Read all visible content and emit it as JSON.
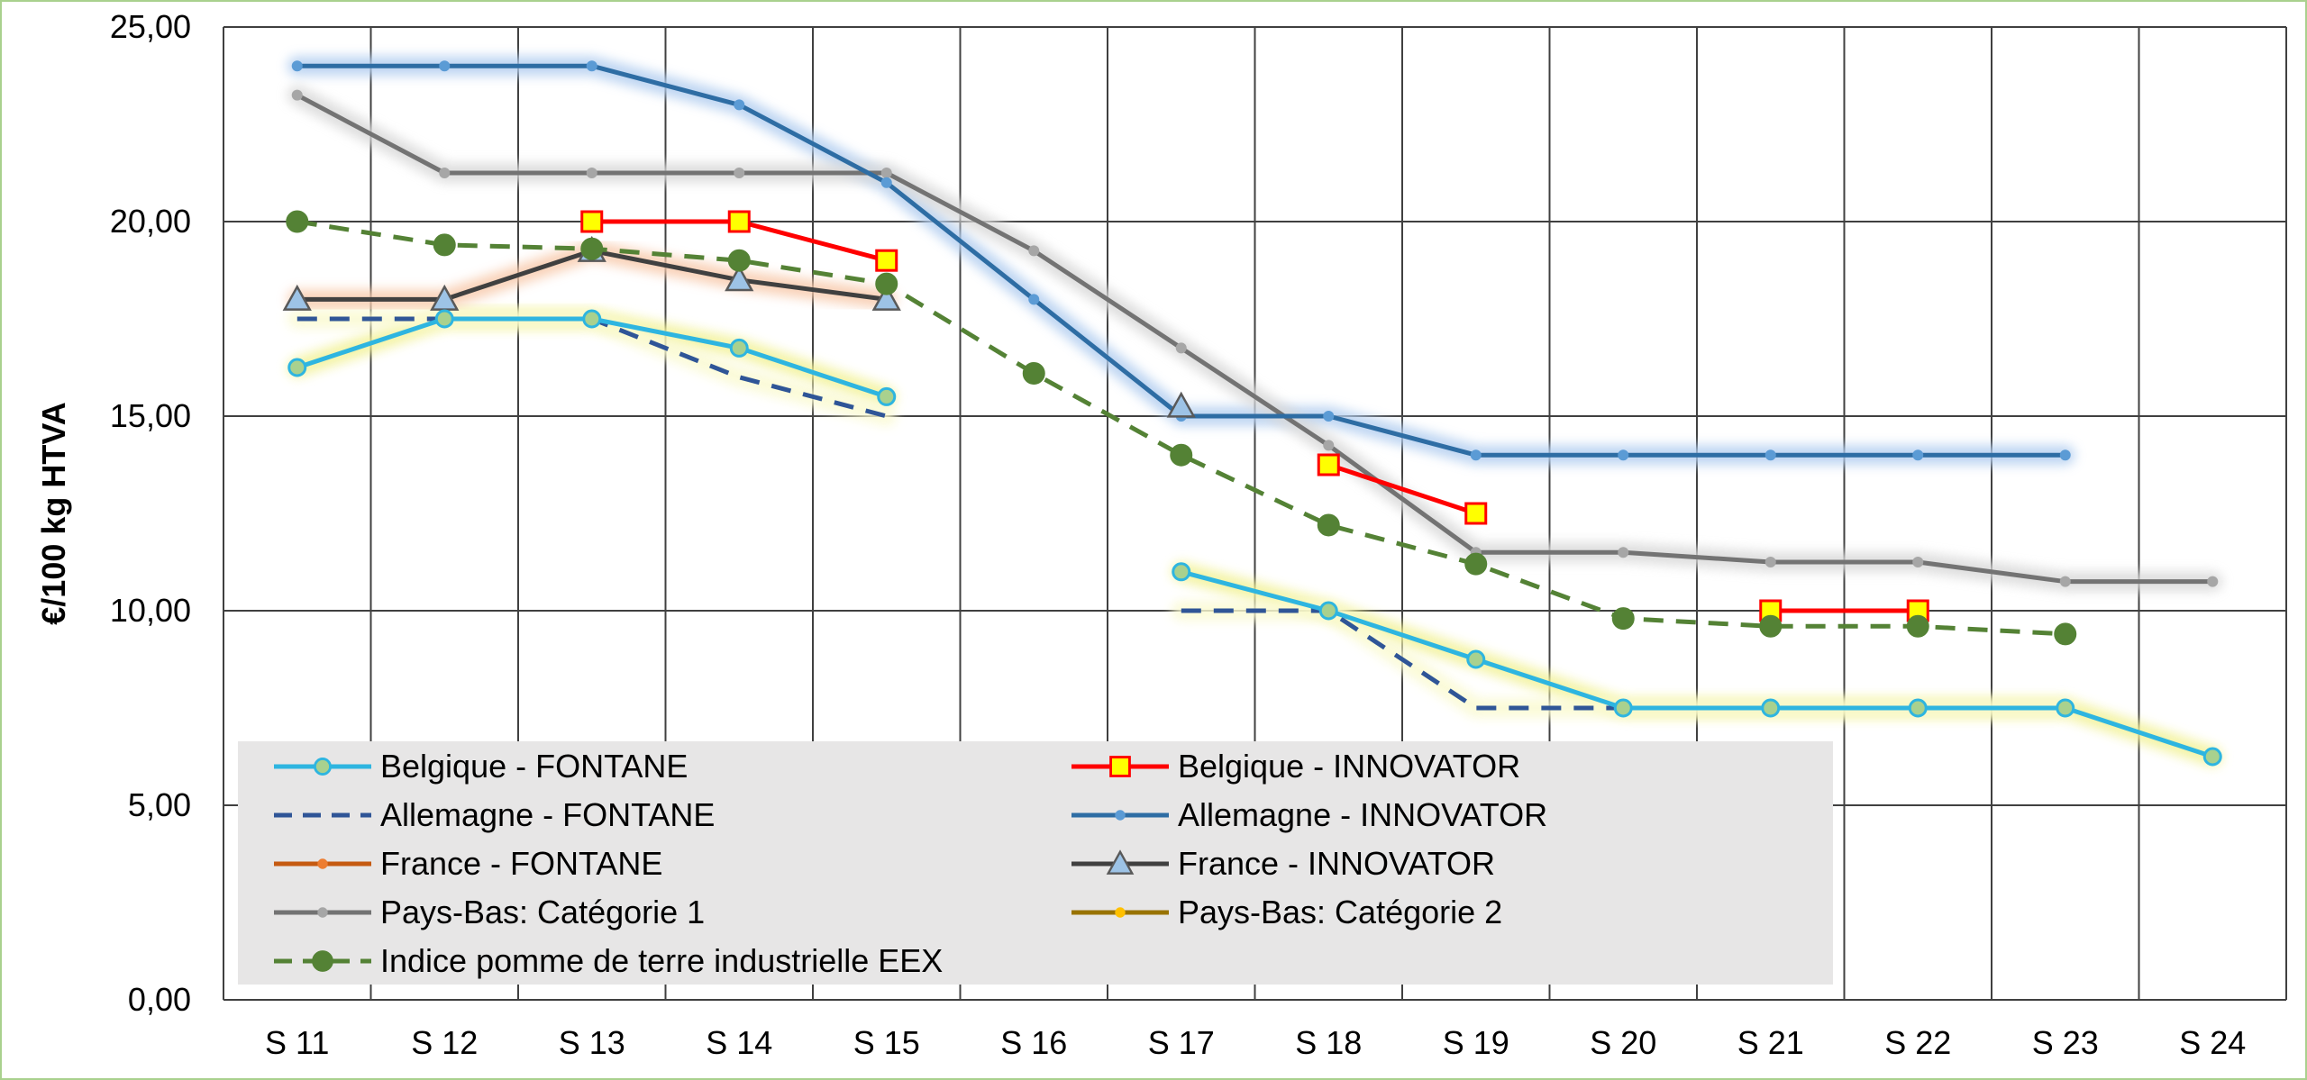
{
  "chart_data": {
    "type": "line",
    "title": "",
    "xlabel": "",
    "ylabel": "€/100 kg HTVA",
    "ylim": [
      0,
      25
    ],
    "ytick_step": 5,
    "ytick_labels": [
      "0,00",
      "5,00",
      "10,00",
      "15,00",
      "20,00",
      "25,00"
    ],
    "grid": true,
    "legend_position": "bottom-left",
    "categories": [
      "S 11",
      "S 12",
      "S 13",
      "S 14",
      "S 15",
      "S 16",
      "S 17",
      "S 18",
      "S 19",
      "S 20",
      "S 21",
      "S 22",
      "S 23",
      "S 24"
    ],
    "series": [
      {
        "name": "Belgique - FONTANE",
        "color": "#2eb5e0",
        "marker": "circle",
        "marker_fill": "#a9d18e",
        "dash": "solid",
        "glow": "#f2f299",
        "values": [
          16.25,
          17.5,
          17.5,
          16.75,
          15.5,
          null,
          11.0,
          10.0,
          8.75,
          7.5,
          7.5,
          7.5,
          7.5,
          6.25
        ]
      },
      {
        "name": "Belgique - INNOVATOR",
        "color": "#ff0000",
        "marker": "square",
        "marker_fill": "#ffff00",
        "dash": "solid",
        "glow": "",
        "values": [
          null,
          null,
          20.0,
          20.0,
          19.0,
          null,
          null,
          13.75,
          12.5,
          null,
          10.0,
          10.0,
          null,
          null
        ]
      },
      {
        "name": "Allemagne - FONTANE",
        "color": "#2f5597",
        "marker": "none",
        "marker_fill": "",
        "dash": "dashed",
        "glow": "#fafad2",
        "values": [
          17.5,
          17.5,
          17.5,
          16.0,
          15.0,
          null,
          10.0,
          10.0,
          7.5,
          7.5,
          7.5,
          7.5,
          7.5,
          null
        ]
      },
      {
        "name": "Allemagne - INNOVATOR",
        "color": "#2e6da4",
        "marker": "dot",
        "marker_fill": "#5b9bd5",
        "dash": "solid",
        "glow": "#b4cff0",
        "values": [
          24.0,
          24.0,
          24.0,
          23.0,
          21.0,
          18.0,
          15.0,
          15.0,
          14.0,
          14.0,
          14.0,
          14.0,
          14.0,
          null
        ]
      },
      {
        "name": "France - FONTANE",
        "color": "#c55a11",
        "marker": "dot",
        "marker_fill": "#ed7d31",
        "dash": "solid",
        "glow": "",
        "values": [
          null,
          null,
          null,
          null,
          null,
          null,
          null,
          null,
          null,
          null,
          null,
          null,
          null,
          null
        ]
      },
      {
        "name": "France - INNOVATOR",
        "color": "#404040",
        "marker": "triangle",
        "marker_fill": "#9dc3e6",
        "dash": "solid",
        "glow": "#f8cbad",
        "values": [
          18.0,
          18.0,
          19.25,
          18.5,
          18.0,
          null,
          15.25,
          null,
          null,
          null,
          null,
          null,
          null,
          null
        ]
      },
      {
        "name": "Pays-Bas: Catégorie 1",
        "color": "#737373",
        "marker": "dot",
        "marker_fill": "#a6a6a6",
        "dash": "solid",
        "glow": "#d9d9d9",
        "values": [
          23.25,
          21.25,
          21.25,
          21.25,
          21.25,
          19.25,
          16.75,
          14.25,
          11.5,
          11.5,
          11.25,
          11.25,
          10.75,
          10.75
        ]
      },
      {
        "name": "Pays-Bas: Catégorie 2",
        "color": "#997300",
        "marker": "dot",
        "marker_fill": "#ffc000",
        "dash": "solid",
        "glow": "",
        "values": [
          null,
          null,
          null,
          null,
          null,
          null,
          null,
          null,
          null,
          null,
          null,
          null,
          null,
          null
        ]
      },
      {
        "name": "Indice pomme de terre industrielle EEX",
        "color": "#548235",
        "marker": "circle",
        "marker_fill": "#548235",
        "dash": "dashed",
        "glow": "",
        "values": [
          20.0,
          19.4,
          19.3,
          19.0,
          18.4,
          16.1,
          14.0,
          12.2,
          11.2,
          9.8,
          9.6,
          9.6,
          9.4,
          null
        ]
      }
    ]
  }
}
